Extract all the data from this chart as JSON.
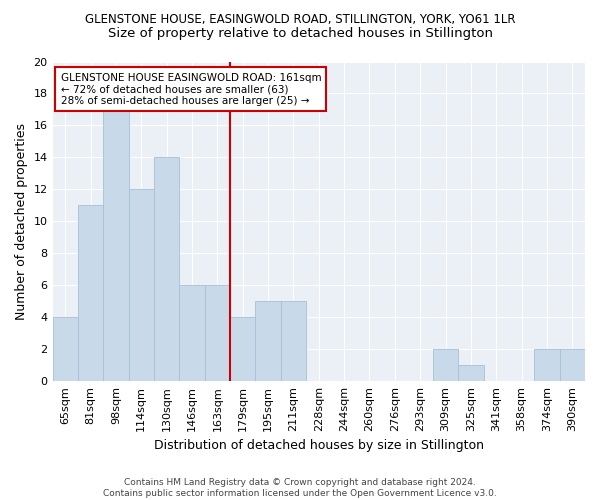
{
  "title1": "GLENSTONE HOUSE, EASINGWOLD ROAD, STILLINGTON, YORK, YO61 1LR",
  "title2": "Size of property relative to detached houses in Stillington",
  "xlabel": "Distribution of detached houses by size in Stillington",
  "ylabel": "Number of detached properties",
  "categories": [
    "65sqm",
    "81sqm",
    "98sqm",
    "114sqm",
    "130sqm",
    "146sqm",
    "163sqm",
    "179sqm",
    "195sqm",
    "211sqm",
    "228sqm",
    "244sqm",
    "260sqm",
    "276sqm",
    "293sqm",
    "309sqm",
    "325sqm",
    "341sqm",
    "358sqm",
    "374sqm",
    "390sqm"
  ],
  "values": [
    4,
    11,
    17,
    12,
    14,
    6,
    6,
    4,
    5,
    5,
    0,
    0,
    0,
    0,
    0,
    2,
    1,
    0,
    0,
    2,
    2
  ],
  "bar_color": "#c8d9ea",
  "bar_edge_color": "#a8bfd4",
  "red_line_x": 6.5,
  "ylim": [
    0,
    20
  ],
  "yticks": [
    0,
    2,
    4,
    6,
    8,
    10,
    12,
    14,
    16,
    18,
    20
  ],
  "annotation_text": "GLENSTONE HOUSE EASINGWOLD ROAD: 161sqm\n← 72% of detached houses are smaller (63)\n28% of semi-detached houses are larger (25) →",
  "footer": "Contains HM Land Registry data © Crown copyright and database right 2024.\nContains public sector information licensed under the Open Government Licence v3.0.",
  "bg_color": "#eaf0f6",
  "grid_color": "#ffffff",
  "title1_fontsize": 8.5,
  "title2_fontsize": 9.5,
  "xlabel_fontsize": 9,
  "ylabel_fontsize": 9,
  "tick_fontsize": 8,
  "ann_fontsize": 7.5,
  "footer_fontsize": 6.5
}
